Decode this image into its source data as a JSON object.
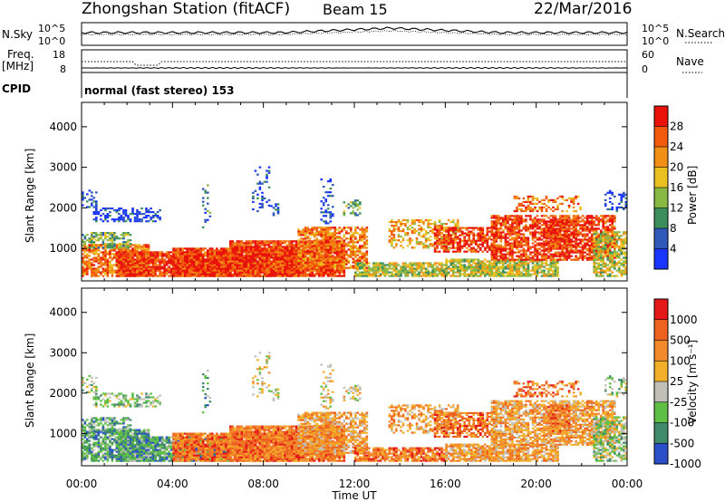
{
  "header": {
    "title": "Zhongshan Station (fitACF)",
    "beam": "Beam 15",
    "date": "22/Mar/2016"
  },
  "status_panels": {
    "nsky_label": "N.Sky",
    "nsearch_label": "N.Search",
    "nsky_ticks": [
      "10^5",
      "10^0"
    ],
    "nsearch_ticks": [
      "10^5",
      "10^0"
    ],
    "freq_label": "Freq.",
    "freq_unit": "[MHz]",
    "freq_ticks": [
      "18",
      "8"
    ],
    "nave_label": "Nave",
    "nave_ticks": [
      "60",
      "0"
    ],
    "cpid_label": "CPID",
    "cpid_text": "normal (fast stereo) 153"
  },
  "chart_data": [
    {
      "type": "heatmap",
      "name": "power",
      "ylabel": "Slant Range [km]",
      "ylim": [
        200,
        4600
      ],
      "yticks": [
        "1000",
        "2000",
        "3000",
        "4000"
      ],
      "xlim": [
        "00:00",
        "24:00"
      ],
      "colorbar_label": "Power [dB]",
      "colorbar_ticks": [
        "4",
        "8",
        "12",
        "16",
        "20",
        "24",
        "28"
      ],
      "colors": [
        "#1a35ff",
        "#2f58b8",
        "#3c8f5c",
        "#8ab845",
        "#e9c020",
        "#f08e15",
        "#f25a0c",
        "#e8120a"
      ]
    },
    {
      "type": "heatmap",
      "name": "velocity",
      "ylabel": "Slant Range [km]",
      "ylim": [
        200,
        4600
      ],
      "yticks": [
        "1000",
        "2000",
        "3000",
        "4000"
      ],
      "xlim": [
        "00:00",
        "24:00"
      ],
      "xticks": [
        "00:00",
        "04:00",
        "08:00",
        "12:00",
        "16:00",
        "20:00",
        "00:00"
      ],
      "xlabel": "Time UT",
      "colorbar_label": "Velocity [m s⁻¹]",
      "colorbar_ticks": [
        "1000",
        "500",
        "100",
        "25",
        "-25",
        "-100",
        "-500",
        "-1000"
      ],
      "colors": [
        "#2a4fc8",
        "#3f8a6a",
        "#5fbf45",
        "#c0c0b8",
        "#f2b02a",
        "#f2892a",
        "#ee6220",
        "#e41818"
      ]
    }
  ]
}
